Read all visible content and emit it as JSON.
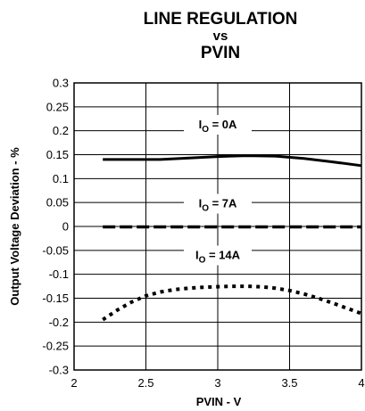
{
  "chart_data": {
    "type": "line",
    "title_lines": [
      "LINE REGULATION",
      "vs",
      "PVIN"
    ],
    "xlabel": "PVIN - V",
    "ylabel": "Output Voltage Deviation - %",
    "xlim": [
      2,
      4
    ],
    "ylim": [
      -0.3,
      0.3
    ],
    "x_ticks": [
      "2",
      "2.5",
      "3",
      "3.5",
      "4"
    ],
    "y_ticks": [
      "0.3",
      "0.25",
      "0.2",
      "0.15",
      "0.1",
      "0.05",
      "0",
      "-0.05",
      "-0.1",
      "-0.15",
      "-0.2",
      "-0.25",
      "-0.3"
    ],
    "grid": true,
    "annotations": [
      {
        "main": "I",
        "sub": "O",
        "rest": " = 0A",
        "x": 3.0,
        "y": 0.205
      },
      {
        "main": "I",
        "sub": "O",
        "rest": " = 7A",
        "x": 3.0,
        "y": 0.04
      },
      {
        "main": "I",
        "sub": "O",
        "rest": " = 14A",
        "x": 3.0,
        "y": -0.068
      }
    ],
    "series": [
      {
        "label_ref": 0,
        "style": "solid",
        "x": [
          2.2,
          2.4,
          2.6,
          2.8,
          3.0,
          3.2,
          3.4,
          3.6,
          3.8,
          4.0
        ],
        "y": [
          0.14,
          0.14,
          0.14,
          0.143,
          0.146,
          0.148,
          0.147,
          0.142,
          0.135,
          0.127
        ]
      },
      {
        "label_ref": 1,
        "style": "dashed",
        "x": [
          2.2,
          2.4,
          2.6,
          2.8,
          3.0,
          3.2,
          3.4,
          3.6,
          3.8,
          4.0
        ],
        "y": [
          -0.001,
          -0.001,
          -0.001,
          -0.001,
          -0.001,
          -0.001,
          -0.001,
          -0.001,
          -0.001,
          -0.001
        ]
      },
      {
        "label_ref": 2,
        "style": "dotted",
        "x": [
          2.2,
          2.3,
          2.4,
          2.5,
          2.6,
          2.7,
          2.8,
          2.9,
          3.0,
          3.1,
          3.2,
          3.3,
          3.4,
          3.5,
          3.6,
          3.7,
          3.8,
          3.9,
          4.0
        ],
        "y": [
          -0.195,
          -0.175,
          -0.158,
          -0.145,
          -0.137,
          -0.132,
          -0.129,
          -0.127,
          -0.126,
          -0.125,
          -0.125,
          -0.126,
          -0.129,
          -0.134,
          -0.141,
          -0.15,
          -0.16,
          -0.171,
          -0.182
        ]
      }
    ],
    "colors": {
      "line": "#000000",
      "grid": "#000000",
      "background": "#ffffff"
    }
  }
}
